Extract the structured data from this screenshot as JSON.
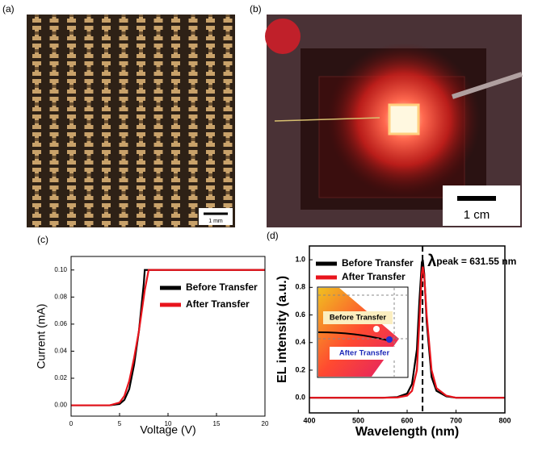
{
  "photos": [
    {
      "panel": "(a)",
      "scale_bar": "1 mm"
    },
    {
      "panel": "(b)",
      "scale_bar": "1 cm"
    }
  ],
  "chart_data": [
    {
      "type": "line",
      "panel": "(c)",
      "x_label": "Voltage (V)",
      "y_label": "Current (mA)",
      "x": [
        0,
        4,
        5,
        5.5,
        6,
        6.5,
        7,
        7.5,
        7.6,
        8,
        10,
        15,
        20
      ],
      "series": [
        {
          "name": "Before Transfer",
          "color": "#000000",
          "values": [
            0,
            0,
            0.001,
            0.004,
            0.012,
            0.03,
            0.055,
            0.09,
            0.1,
            0.1,
            0.1,
            0.1,
            0.1
          ]
        },
        {
          "name": "After Transfer",
          "color": "#e8141c",
          "values": [
            0,
            0,
            0.002,
            0.007,
            0.018,
            0.035,
            0.055,
            0.08,
            0.085,
            0.1,
            0.1,
            0.1,
            0.1
          ]
        }
      ],
      "xlim": [
        0,
        20
      ],
      "xticks": [
        0,
        5,
        10,
        15,
        20
      ],
      "ylim": [
        -0.008,
        0.11
      ],
      "yticks": [
        {
          "value": 0,
          "label": "0.00"
        },
        {
          "value": 0.02,
          "label": "0.02"
        },
        {
          "value": 0.04,
          "label": "0.04"
        },
        {
          "value": 0.06,
          "label": "0.06"
        },
        {
          "value": 0.08,
          "label": "0.08"
        },
        {
          "value": 0.1,
          "label": "0.10"
        }
      ]
    },
    {
      "type": "line",
      "panel": "(d)",
      "x_label": "Wavelength (nm)",
      "y_label": "EL intensity (a.u.)",
      "x": [
        400,
        550,
        580,
        600,
        610,
        620,
        625,
        630,
        632,
        635,
        640,
        650,
        660,
        680,
        700,
        800
      ],
      "series": [
        {
          "name": "Before Transfer",
          "color": "#000000",
          "values": [
            0,
            0,
            0.005,
            0.03,
            0.1,
            0.35,
            0.7,
            0.98,
            1.0,
            0.9,
            0.55,
            0.15,
            0.05,
            0.01,
            0,
            0
          ]
        },
        {
          "name": "After Transfer",
          "color": "#e8141c",
          "values": [
            0,
            0,
            0.002,
            0.015,
            0.05,
            0.2,
            0.55,
            0.9,
            0.95,
            0.88,
            0.6,
            0.2,
            0.07,
            0.015,
            0,
            0
          ]
        }
      ],
      "xlim": [
        400,
        800
      ],
      "xticks": [
        400,
        500,
        600,
        700,
        800
      ],
      "ylim": [
        -0.11,
        1.1
      ],
      "yticks": [
        {
          "value": 0,
          "label": "0.0"
        },
        {
          "value": 0.2,
          "label": "0.2"
        },
        {
          "value": 0.4,
          "label": "0.4"
        },
        {
          "value": 0.6,
          "label": "0.6"
        },
        {
          "value": 0.8,
          "label": "0.8"
        },
        {
          "value": 1.0,
          "label": "1.0"
        }
      ],
      "peak_x": 631.55,
      "annotation_symbol": "λ",
      "annotation_text": "peak = 631.55 nm",
      "inset_labels": [
        "Before Transfer",
        "After Transfer"
      ]
    }
  ]
}
